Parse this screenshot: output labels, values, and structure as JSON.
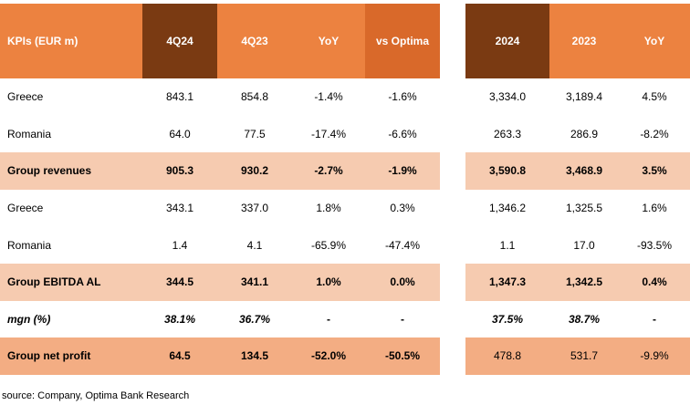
{
  "table": {
    "left_headers": [
      "KPIs (EUR m)",
      "4Q24",
      "4Q23",
      "YoY",
      "vs Optima"
    ],
    "right_headers": [
      "2024",
      "2023",
      "YoY"
    ],
    "rows": [
      {
        "label": "Greece",
        "q": [
          "843.1",
          "854.8",
          "-1.4%",
          "-1.6%"
        ],
        "y": [
          "3,334.0",
          "3,189.4",
          "4.5%"
        ],
        "style": "plain"
      },
      {
        "label": "Romania",
        "q": [
          "64.0",
          "77.5",
          "-17.4%",
          "-6.6%"
        ],
        "y": [
          "263.3",
          "286.9",
          "-8.2%"
        ],
        "style": "plain"
      },
      {
        "label": "Group revenues",
        "q": [
          "905.3",
          "930.2",
          "-2.7%",
          "-1.9%"
        ],
        "y": [
          "3,590.8",
          "3,468.9",
          "3.5%"
        ],
        "style": "band-a"
      },
      {
        "label": "Greece",
        "q": [
          "343.1",
          "337.0",
          "1.8%",
          "0.3%"
        ],
        "y": [
          "1,346.2",
          "1,325.5",
          "1.6%"
        ],
        "style": "plain"
      },
      {
        "label": "Romania",
        "q": [
          "1.4",
          "4.1",
          "-65.9%",
          "-47.4%"
        ],
        "y": [
          "1.1",
          "17.0",
          "-93.5%"
        ],
        "style": "plain"
      },
      {
        "label": "Group EBITDA AL",
        "q": [
          "344.5",
          "341.1",
          "1.0%",
          "0.0%"
        ],
        "y": [
          "1,347.3",
          "1,342.5",
          "0.4%"
        ],
        "style": "band-a"
      },
      {
        "label": "mgn (%)",
        "q": [
          "38.1%",
          "36.7%",
          "-",
          "-"
        ],
        "y": [
          "37.5%",
          "38.7%",
          "-"
        ],
        "style": "italic"
      },
      {
        "label": "Group net profit",
        "q": [
          "64.5",
          "134.5",
          "-52.0%",
          "-50.5%"
        ],
        "y": [
          "478.8",
          "531.7",
          "-9.9%"
        ],
        "style": "band-b"
      }
    ]
  },
  "source": "source: Company, Optima Bank Research",
  "colors": {
    "header": "#ec8240",
    "header_dark": "#7a3a12",
    "header_mid": "#d9692a",
    "band_light": "#f6cbb0",
    "band_dark": "#f3ad83"
  }
}
